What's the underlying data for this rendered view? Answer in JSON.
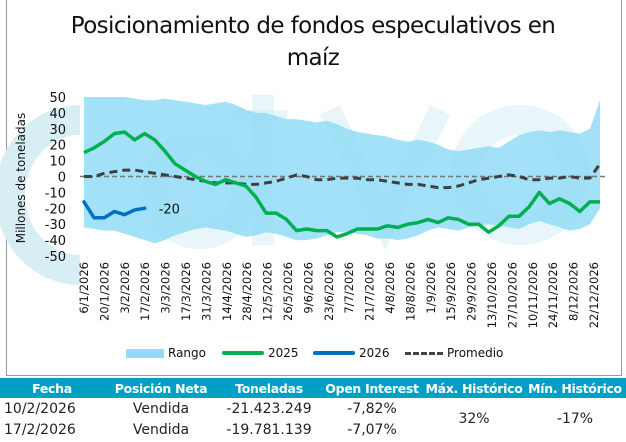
{
  "chart_data": {
    "type": "line",
    "title": "Posicionamiento de fondos especulativos en maíz",
    "title_lines": [
      "Posicionamiento de fondos especulativos en",
      "maíz"
    ],
    "xlabel": "",
    "ylabel": "Millones de toneladas",
    "ylim": [
      -50,
      50
    ],
    "yticks": [
      50,
      40,
      30,
      20,
      10,
      0,
      -10,
      -20,
      -30,
      -40,
      -50
    ],
    "x_tick_labels": [
      "6/1/2026",
      "20/1/2026",
      "3/2/2026",
      "17/2/2026",
      "3/3/2026",
      "17/3/2026",
      "31/3/2026",
      "14/4/2026",
      "28/4/2026",
      "12/5/2026",
      "26/5/2026",
      "9/6/2026",
      "23/6/2026",
      "7/7/2026",
      "21/7/2026",
      "4/8/2026",
      "18/8/2026",
      "1/9/2026",
      "15/9/2026",
      "29/9/2026",
      "13/10/2026",
      "27/10/2026",
      "10/11/2026",
      "24/11/2026",
      "8/12/2026",
      "22/12/2026"
    ],
    "x_weeks": 52,
    "grid": false,
    "legend_position": "bottom",
    "series": [
      {
        "name": "Rango",
        "kind": "area",
        "color": "#93dcf7",
        "upper": [
          50,
          50,
          50,
          50,
          50,
          49,
          48,
          48,
          49,
          48,
          47,
          46,
          45,
          46,
          47,
          45,
          42,
          40,
          40,
          38,
          36,
          36,
          35,
          34,
          35,
          33,
          30,
          28,
          27,
          26,
          25,
          23,
          22,
          23,
          22,
          20,
          17,
          16,
          17,
          18,
          19,
          18,
          22,
          26,
          28,
          29,
          28,
          29,
          28,
          27,
          30,
          48
        ],
        "lower": [
          -32,
          -33,
          -34,
          -34,
          -36,
          -38,
          -40,
          -42,
          -40,
          -37,
          -35,
          -33,
          -32,
          -33,
          -34,
          -36,
          -38,
          -37,
          -35,
          -36,
          -38,
          -40,
          -40,
          -39,
          -37,
          -35,
          -35,
          -36,
          -37,
          -39,
          -39,
          -40,
          -39,
          -37,
          -34,
          -32,
          -33,
          -34,
          -32,
          -31,
          -30,
          -31,
          -32,
          -33,
          -30,
          -28,
          -30,
          -32,
          -34,
          -33,
          -30,
          -20
        ]
      },
      {
        "name": "2025",
        "kind": "line",
        "color": "#00b050",
        "values": [
          15,
          18,
          22,
          27,
          28,
          23,
          27,
          23,
          16,
          8,
          4,
          0,
          -3,
          -5,
          -2,
          -4,
          -6,
          -13,
          -23,
          -23,
          -27,
          -34,
          -33,
          -34,
          -34,
          -38,
          -36,
          -33,
          -33,
          -33,
          -31,
          -32,
          -30,
          -29,
          -27,
          -29,
          -26,
          -27,
          -30,
          -30,
          -35,
          -31,
          -25,
          -25,
          -19,
          -10,
          -17,
          -14,
          -17,
          -22,
          -16,
          -16
        ]
      },
      {
        "name": "2026",
        "kind": "line",
        "color": "#0070c0",
        "values": [
          -16,
          -26,
          -26,
          -22,
          -24,
          -21,
          -20
        ],
        "last_label": "-20"
      },
      {
        "name": "Promedio",
        "kind": "dashed",
        "color": "#404040",
        "values": [
          0,
          0,
          2,
          3,
          4,
          4,
          3,
          2,
          1,
          0,
          -1,
          -2,
          -3,
          -4,
          -4,
          -4,
          -5,
          -5,
          -4,
          -3,
          -1,
          1,
          0,
          -2,
          -2,
          -1,
          -1,
          -1,
          -2,
          -2,
          -3,
          -4,
          -5,
          -5,
          -6,
          -7,
          -7,
          -6,
          -4,
          -2,
          -1,
          0,
          1,
          0,
          -2,
          -2,
          -1,
          -1,
          0,
          -1,
          -1,
          8
        ]
      }
    ]
  },
  "legend": {
    "items": [
      {
        "label": "Rango"
      },
      {
        "label": "2025"
      },
      {
        "label": "2026"
      },
      {
        "label": "Promedio"
      }
    ]
  },
  "table": {
    "headers": [
      "Fecha",
      "Posición Neta",
      "Toneladas",
      "Open Interest",
      "Máx. Histórico",
      "Mín. Histórico"
    ],
    "rows": [
      [
        "10/2/2026",
        "Vendida",
        "-21.423.249",
        "-7,82%"
      ],
      [
        "17/2/2026",
        "Vendida",
        "-19.781.139",
        "-7,07%"
      ]
    ],
    "max_historico": "32%",
    "min_historico": "-17%"
  },
  "colors": {
    "table_header_bg": "#00a0c6",
    "watermark": "#d8eef5"
  }
}
